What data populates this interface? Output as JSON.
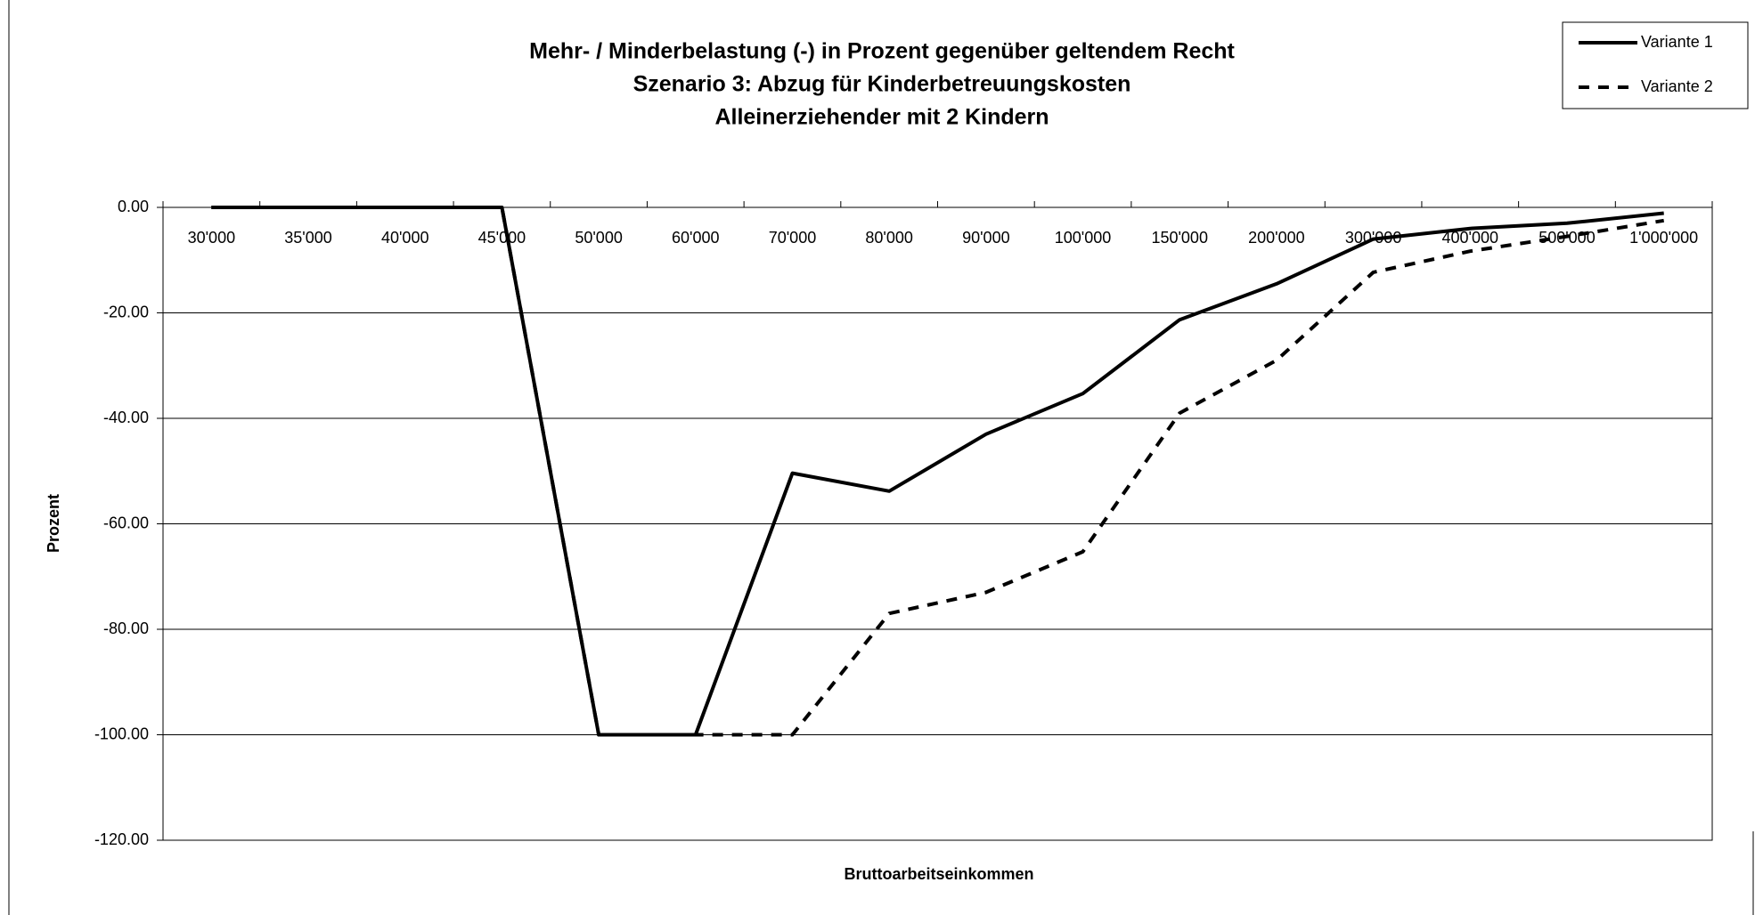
{
  "chart_data": {
    "type": "line",
    "title": [
      "Mehr- / Minderbelastung (-) in Prozent gegenüber geltendem Recht",
      "Szenario 3: Abzug für Kinderbetreuungskosten",
      "Alleinerziehender mit 2 Kindern"
    ],
    "x_label": "Bruttoarbeitseinkommen",
    "y_label": "Prozent",
    "categories": [
      "30'000",
      "35'000",
      "40'000",
      "45'000",
      "50'000",
      "60'000",
      "70'000",
      "80'000",
      "90'000",
      "100'000",
      "150'000",
      "200'000",
      "300'000",
      "400'000",
      "500'000",
      "1'000'000"
    ],
    "series": [
      {
        "name": "Variante 1",
        "color": "#000000",
        "line_style": "solid",
        "values": [
          0,
          0,
          0,
          0,
          -100,
          -100,
          -50.4,
          -53.8,
          -43,
          -35.3,
          -21.3,
          -14.5,
          -6,
          -4,
          -3,
          -1.1
        ]
      },
      {
        "name": "Variante 2",
        "color": "#000000",
        "line_style": "dashed",
        "values": [
          0,
          0,
          0,
          0,
          -100,
          -100,
          -100,
          -77,
          -73,
          -65.3,
          -39,
          -29,
          -12.3,
          -8.3,
          -5.5,
          -2.5
        ]
      }
    ],
    "ylim": [
      -120,
      0
    ],
    "yticks": [
      {
        "value": 0,
        "label": "0.00"
      },
      {
        "value": -20,
        "label": "-20.00"
      },
      {
        "value": -40,
        "label": "-40.00"
      },
      {
        "value": -60,
        "label": "-60.00"
      },
      {
        "value": -80,
        "label": "-80.00"
      },
      {
        "value": -100,
        "label": "-100.00"
      },
      {
        "value": -120,
        "label": "-120.00"
      }
    ],
    "grid": true,
    "legend": "top-right"
  }
}
